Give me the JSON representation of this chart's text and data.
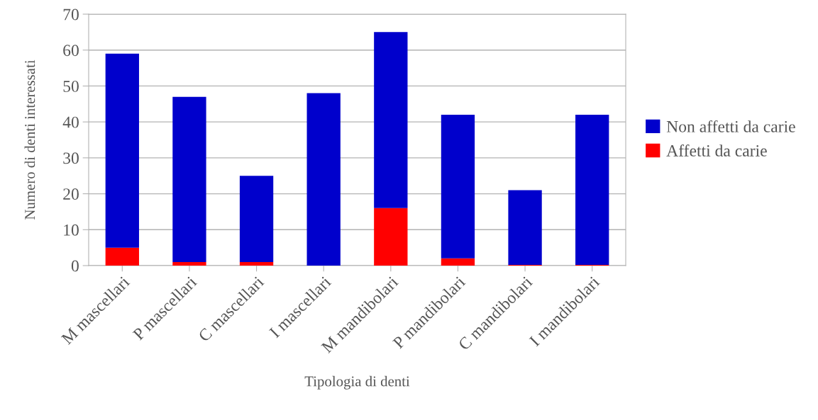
{
  "chart_data": {
    "type": "bar",
    "stacked": true,
    "xlabel": "Tipologia di denti",
    "ylabel": "Numero di denti interessati",
    "categories": [
      "M mascellari",
      "P mascellari",
      "C mascellari",
      "I mascellari",
      "M mandibolari",
      "P mandibolari",
      "C mandibolari",
      "I mandibolari"
    ],
    "series": [
      {
        "name": "Affetti da carie",
        "color": "#ff0000",
        "values": [
          5,
          1,
          1,
          0,
          16,
          2,
          0.2,
          0.2
        ]
      },
      {
        "name": "Non affetti da carie",
        "color": "#0000cc",
        "values": [
          54,
          46,
          24,
          48,
          49,
          40,
          20.8,
          41.8
        ]
      }
    ],
    "ylim": [
      0,
      70
    ],
    "yticks": [
      0,
      10,
      20,
      30,
      40,
      50,
      60,
      70
    ],
    "grid": "y",
    "legend": "right"
  }
}
